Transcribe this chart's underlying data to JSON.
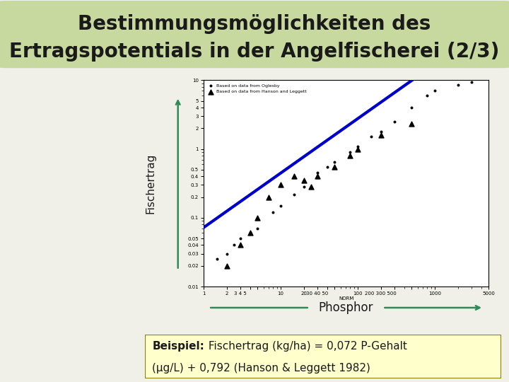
{
  "title_line1": "Bestimmungsmöglichkeiten des",
  "title_line2": "Ertragspotentials in der Angelfischerei (2/3)",
  "title_fontsize": 20,
  "title_fontweight": "bold",
  "title_bg_color": "#c8d9a0",
  "background_color": "#f0f0e8",
  "ylabel_text": "Fischertrag",
  "xlabel_text": "Phosphor",
  "arrow_color": "#2e8b57",
  "beispiel_bold": "Beispiel:",
  "beispiel_normal_1": " Fischertrag (kg/ha) = 0,072 P-Gehalt",
  "beispiel_normal_2": "(μg/L) + 0,792 (Hanson & Leggett 1982)",
  "beispiel_box_color": "#ffffcc",
  "beispiel_box_border": "#8b8000",
  "line_color": "#0000cc",
  "line_width": 3,
  "ogl_x": [
    1.5,
    2,
    2.5,
    3,
    4,
    5,
    8,
    10,
    15,
    20,
    30,
    40,
    50,
    80,
    100,
    150,
    200,
    300,
    500,
    800,
    1000,
    2000,
    3000
  ],
  "ogl_y": [
    0.025,
    0.03,
    0.04,
    0.05,
    0.06,
    0.07,
    0.12,
    0.15,
    0.22,
    0.28,
    0.45,
    0.55,
    0.65,
    0.9,
    1.1,
    1.5,
    1.8,
    2.5,
    4.0,
    6.0,
    7.0,
    8.5,
    9.5
  ],
  "han_x": [
    2,
    3,
    4,
    5,
    7,
    10,
    15,
    20,
    25,
    30,
    50,
    80,
    100,
    200,
    500
  ],
  "han_y": [
    0.02,
    0.04,
    0.06,
    0.1,
    0.2,
    0.3,
    0.4,
    0.35,
    0.28,
    0.4,
    0.55,
    0.8,
    1.0,
    1.6,
    2.3
  ],
  "xtick_positions": [
    1,
    2,
    3,
    4,
    5,
    10,
    20,
    30,
    40,
    50,
    100,
    200,
    300,
    500,
    1000,
    5000
  ],
  "xtick_labels": [
    "1",
    "2",
    "3 4 5",
    "",
    "",
    "10",
    "20",
    "30 40 50",
    "",
    "",
    "100",
    "200 300 500",
    "",
    "",
    "1000",
    "5000"
  ],
  "ytick_positions": [
    0.01,
    0.02,
    0.03,
    0.04,
    0.05,
    0.1,
    0.2,
    0.3,
    0.4,
    0.5,
    1,
    2,
    3,
    4,
    5,
    10
  ],
  "ytick_labels": [
    "0.01",
    "0.02",
    "0.03",
    "0.04",
    "0.05",
    "0.1",
    "0.2",
    "0.3",
    "0.4",
    "0.5",
    "1",
    "2",
    "3",
    "4",
    "5",
    "10"
  ],
  "legend_ogl": "Based on data from Oglesby",
  "legend_han": "Based on data from Hanson and Leggett",
  "norm_label": "NORM"
}
